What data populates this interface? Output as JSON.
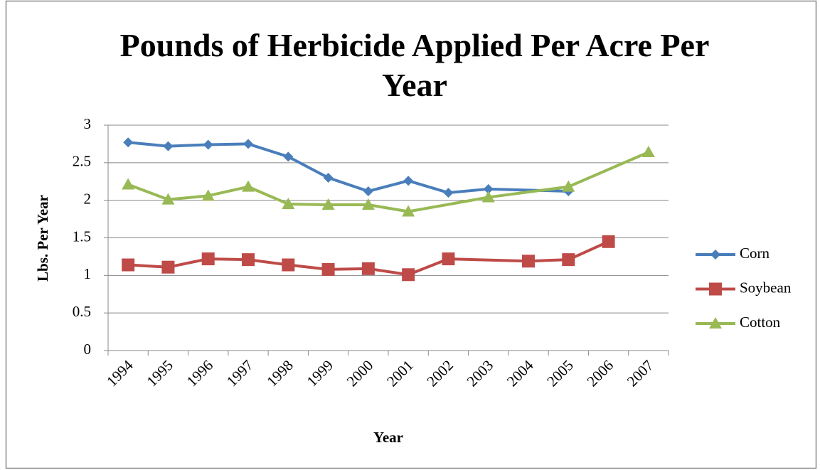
{
  "chart_data": {
    "type": "line",
    "title": "Pounds of Herbicide Applied Per Acre Per Year",
    "x_label": "Year",
    "y_label": "Lbs. Per Year",
    "categories": [
      "1994",
      "1995",
      "1996",
      "1997",
      "1998",
      "1999",
      "2000",
      "2001",
      "2002",
      "2003",
      "2004",
      "2005",
      "2006",
      "2007"
    ],
    "series": [
      {
        "name": "Corn",
        "color": "#4a7ebb",
        "marker": "diamond",
        "values": [
          2.77,
          2.72,
          2.74,
          2.75,
          2.58,
          2.3,
          2.12,
          2.26,
          2.1,
          2.15,
          null,
          2.12,
          null,
          null
        ]
      },
      {
        "name": "Soybean",
        "color": "#be4b48",
        "marker": "square",
        "values": [
          1.14,
          1.11,
          1.22,
          1.21,
          1.14,
          1.08,
          1.09,
          1.01,
          1.22,
          null,
          1.19,
          1.21,
          1.45,
          null
        ]
      },
      {
        "name": "Cotton",
        "color": "#98b954",
        "marker": "triangle",
        "values": [
          2.21,
          2.01,
          2.06,
          2.18,
          1.95,
          1.94,
          1.94,
          1.85,
          null,
          2.04,
          null,
          2.18,
          null,
          2.64
        ]
      }
    ],
    "ylim": [
      0,
      3
    ],
    "yticks": [
      0,
      0.5,
      1,
      1.5,
      2,
      2.5,
      3
    ],
    "grid": true,
    "connect_gaps": true,
    "legend": "right"
  }
}
